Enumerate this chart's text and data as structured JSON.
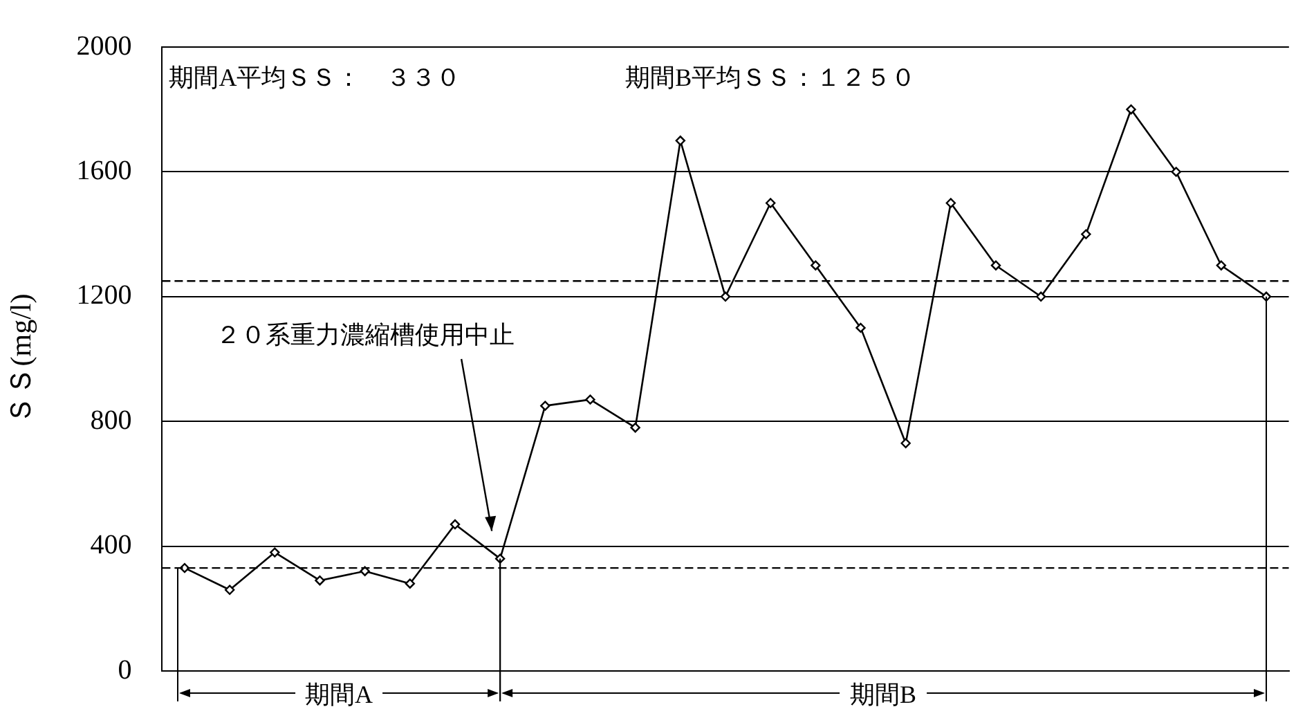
{
  "chart_data": {
    "type": "line",
    "ylabel": "ＳＳ(mg/l)",
    "categories": [
      null,
      null,
      null,
      null,
      null,
      null,
      null,
      null,
      null,
      null,
      null,
      null,
      null,
      null,
      null,
      null,
      null,
      null,
      null,
      null,
      null,
      null,
      null,
      null,
      null
    ],
    "series": [
      {
        "color": "#000000",
        "values": [
          330,
          260,
          380,
          290,
          320,
          280,
          470,
          360,
          850,
          870,
          780,
          1700,
          1200,
          1500,
          1300,
          1100,
          730,
          1500,
          1300,
          1200,
          1400,
          1800,
          1600,
          1300,
          1200
        ]
      }
    ],
    "ylim": [
      0,
      2000
    ],
    "yticks": [
      0,
      400,
      800,
      1200,
      1600,
      2000
    ],
    "grid": "y",
    "legend": false,
    "marker": "diamond",
    "line_style": "solid",
    "ref_lines": [
      {
        "axis": "y",
        "value": 330,
        "color": "#000000",
        "line_style": "dashed"
      },
      {
        "axis": "y",
        "value": 1250,
        "color": "#000000",
        "line_style": "dashed"
      }
    ],
    "annotations": [
      "期間A平均ＳＳ：　３３０",
      "期間B平均ＳＳ：１２５０",
      "２０系重力濃縮槽使用中止",
      "期間A",
      "期間B"
    ]
  }
}
